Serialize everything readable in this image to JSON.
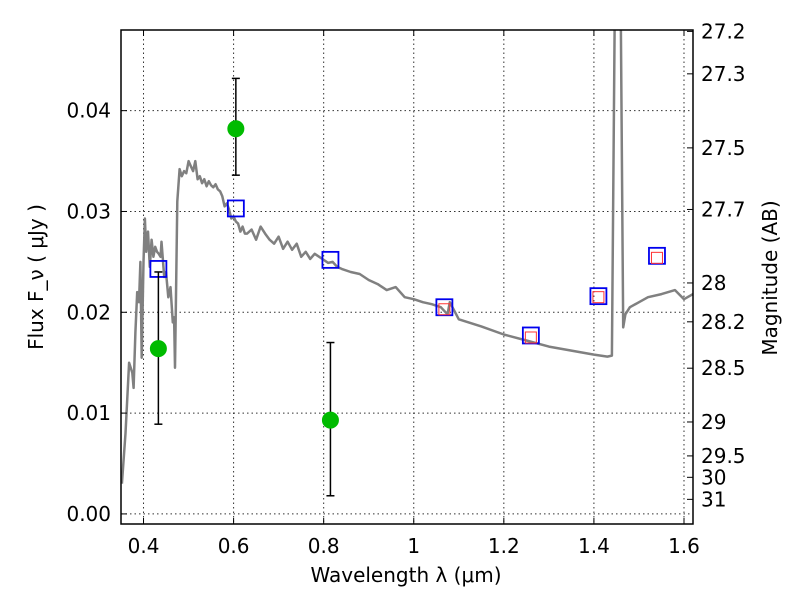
{
  "chart_data": {
    "type": "scatter",
    "xlabel": "Wavelength  λ (μm)",
    "ylabel": "Flux  F_ν  ( μJy )",
    "ylabel_right": "Magnitude (AB)",
    "xlim": [
      0.35,
      1.62
    ],
    "ylim": [
      -0.001,
      0.048
    ],
    "grid": true,
    "x_ticks": [
      0.4,
      0.6,
      0.8,
      1.0,
      1.2,
      1.4,
      1.6
    ],
    "x_tick_labels": [
      "0.4",
      "0.6",
      "0.8",
      "1",
      "1.2",
      "1.4",
      "1.6"
    ],
    "y_ticks": [
      0.0,
      0.01,
      0.02,
      0.03,
      0.04
    ],
    "y_tick_labels": [
      "0.00",
      "0.01",
      "0.02",
      "0.03",
      "0.04"
    ],
    "mag_ticks": [
      "27.2",
      "27.3",
      "27.5",
      "27.7",
      "28",
      "28.2",
      "28.5",
      "29",
      "29.5",
      "30",
      "31"
    ],
    "series": [
      {
        "kind": "line",
        "color": "#808080",
        "x": [
          0.352,
          0.36,
          0.368,
          0.375,
          0.378,
          0.382,
          0.386,
          0.39,
          0.393,
          0.396,
          0.4,
          0.403,
          0.406,
          0.41,
          0.414,
          0.418,
          0.422,
          0.426,
          0.43,
          0.434,
          0.438,
          0.44,
          0.443,
          0.446,
          0.45,
          0.455,
          0.46,
          0.465,
          0.468,
          0.47,
          0.475,
          0.48,
          0.485,
          0.49,
          0.495,
          0.5,
          0.505,
          0.51,
          0.515,
          0.52,
          0.525,
          0.53,
          0.535,
          0.54,
          0.545,
          0.55,
          0.555,
          0.56,
          0.565,
          0.57,
          0.575,
          0.58,
          0.585,
          0.59,
          0.595,
          0.6,
          0.605,
          0.61,
          0.615,
          0.62,
          0.625,
          0.63,
          0.64,
          0.65,
          0.66,
          0.67,
          0.68,
          0.69,
          0.7,
          0.71,
          0.72,
          0.73,
          0.74,
          0.75,
          0.76,
          0.77,
          0.78,
          0.79,
          0.8,
          0.81,
          0.82,
          0.83,
          0.84,
          0.86,
          0.88,
          0.9,
          0.92,
          0.94,
          0.96,
          0.98,
          1.0,
          1.02,
          1.04,
          1.06,
          1.075,
          1.08,
          1.1,
          1.15,
          1.2,
          1.25,
          1.3,
          1.35,
          1.4,
          1.43,
          1.44,
          1.446,
          1.455,
          1.46,
          1.465,
          1.47,
          1.48,
          1.5,
          1.52,
          1.55,
          1.58,
          1.6,
          1.62
        ],
        "y": [
          0.003,
          0.008,
          0.015,
          0.014,
          0.0125,
          0.018,
          0.022,
          0.021,
          0.025,
          0.0155,
          0.025,
          0.0293,
          0.026,
          0.028,
          0.0245,
          0.0272,
          0.0255,
          0.0265,
          0.026,
          0.0258,
          0.0255,
          0.027,
          0.0252,
          0.0235,
          0.024,
          0.0215,
          0.0225,
          0.019,
          0.0195,
          0.0145,
          0.031,
          0.0342,
          0.0335,
          0.034,
          0.0338,
          0.035,
          0.0345,
          0.034,
          0.035,
          0.0332,
          0.0335,
          0.0328,
          0.0332,
          0.0325,
          0.033,
          0.0326,
          0.0324,
          0.0327,
          0.0322,
          0.032,
          0.0315,
          0.0305,
          0.0308,
          0.0302,
          0.0293,
          0.0295,
          0.029,
          0.0288,
          0.028,
          0.0285,
          0.0278,
          0.0278,
          0.0282,
          0.0272,
          0.0285,
          0.0278,
          0.0272,
          0.0268,
          0.0275,
          0.0263,
          0.027,
          0.0262,
          0.0268,
          0.0255,
          0.026,
          0.0253,
          0.0258,
          0.0255,
          0.0252,
          0.0249,
          0.025,
          0.0245,
          0.0243,
          0.024,
          0.0238,
          0.0232,
          0.0228,
          0.0222,
          0.0225,
          0.0215,
          0.0213,
          0.021,
          0.0208,
          0.0205,
          0.0198,
          0.021,
          0.0193,
          0.0186,
          0.0178,
          0.0172,
          0.0166,
          0.0162,
          0.0158,
          0.0156,
          0.0157,
          0.048,
          0.05,
          0.048,
          0.0185,
          0.0198,
          0.0205,
          0.021,
          0.0215,
          0.0218,
          0.0222,
          0.0213,
          0.0218
        ]
      },
      {
        "kind": "markers",
        "marker": "square",
        "color": "#0000ee",
        "x": [
          0.433,
          0.605,
          0.815,
          1.068,
          1.26,
          1.41,
          1.54
        ],
        "y": [
          0.0243,
          0.0303,
          0.0252,
          0.0205,
          0.0177,
          0.0216,
          0.0256
        ]
      },
      {
        "kind": "markers",
        "marker": "small-square",
        "color": "#ff3333",
        "x": [
          1.068,
          1.26,
          1.41,
          1.54
        ],
        "y": [
          0.0203,
          0.0175,
          0.0215,
          0.0254
        ]
      },
      {
        "kind": "errorbar",
        "marker": "circle",
        "color": "#00bb00",
        "x": [
          0.433,
          0.605,
          0.815
        ],
        "y": [
          0.0164,
          0.0382,
          0.0093
        ],
        "yerr_low": [
          0.0089,
          0.0336,
          0.0018
        ],
        "yerr_high": [
          0.024,
          0.0432,
          0.017
        ]
      }
    ]
  }
}
